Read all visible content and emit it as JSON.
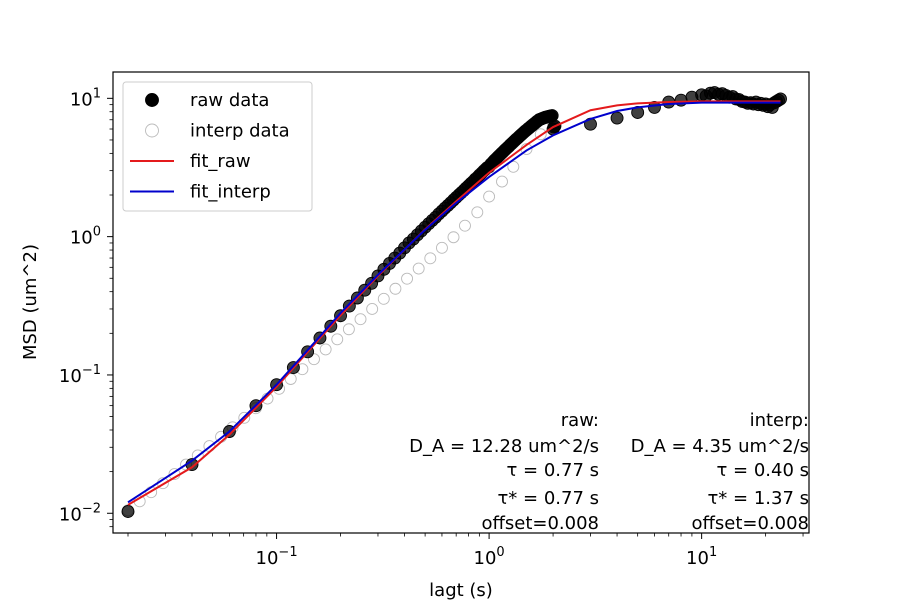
{
  "chart_data": {
    "type": "scatter",
    "xlabel": "lagt (s)",
    "ylabel": "MSD (um^2)",
    "xscale": "log",
    "yscale": "log",
    "xlim": [
      0.017,
      32
    ],
    "ylim": [
      0.0072,
      15.5
    ],
    "grid": false,
    "legend_position": "top-left",
    "x_ticks": [
      {
        "value": 0.1,
        "base": "10",
        "exp": "−1"
      },
      {
        "value": 1,
        "base": "10",
        "exp": "0"
      },
      {
        "value": 10,
        "base": "10",
        "exp": "1"
      }
    ],
    "y_ticks": [
      {
        "value": 0.01,
        "base": "10",
        "exp": "−2"
      },
      {
        "value": 0.1,
        "base": "10",
        "exp": "−1"
      },
      {
        "value": 1,
        "base": "10",
        "exp": "0"
      },
      {
        "value": 10,
        "base": "10",
        "exp": "1"
      }
    ],
    "legend": [
      {
        "label": "raw data",
        "kind": "marker",
        "fill": "#000000",
        "edge": "#000000"
      },
      {
        "label": "interp data",
        "kind": "marker",
        "fill": "#ffffff",
        "edge": "#bbbbbb"
      },
      {
        "label": "fit_raw",
        "kind": "line",
        "color": "#e41a1c"
      },
      {
        "label": "fit_interp",
        "kind": "line",
        "color": "#0000cc"
      }
    ],
    "series": [
      {
        "name": "interp data",
        "kind": "scatter",
        "fill": "#ffffff",
        "edge": "#bbbbbb",
        "x": [
          0.02,
          0.0227,
          0.0257,
          0.0292,
          0.0331,
          0.0375,
          0.0426,
          0.0483,
          0.0548,
          0.0621,
          0.0705,
          0.0799,
          0.0907,
          0.1028,
          0.1166,
          0.1323,
          0.15,
          0.1702,
          0.193,
          0.2189,
          0.2483,
          0.2817,
          0.3195,
          0.3624,
          0.4111,
          0.4663,
          0.5289,
          0.6,
          0.68,
          0.77,
          0.88,
          1.0,
          1.15,
          1.3,
          1.5,
          1.75,
          2.0
        ],
        "y": [
          0.0105,
          0.0122,
          0.0142,
          0.0165,
          0.0192,
          0.0225,
          0.0262,
          0.0306,
          0.0357,
          0.0418,
          0.049,
          0.0575,
          0.0675,
          0.0794,
          0.0935,
          0.11,
          0.13,
          0.153,
          0.181,
          0.214,
          0.253,
          0.3,
          0.355,
          0.42,
          0.497,
          0.588,
          0.697,
          0.83,
          0.99,
          1.2,
          1.5,
          1.95,
          2.5,
          3.2,
          4.3,
          5.5,
          6.5
        ]
      },
      {
        "name": "raw data",
        "kind": "scatter",
        "fill": "#000000",
        "edge": "#000000",
        "x": [
          0.02,
          0.04,
          0.06,
          0.08,
          0.1,
          0.12,
          0.14,
          0.16,
          0.18,
          0.2,
          0.22,
          0.24,
          0.26,
          0.28,
          0.3,
          0.32,
          0.34,
          0.36,
          0.38,
          0.4,
          0.42,
          0.44,
          0.46,
          0.48,
          0.5,
          0.52,
          0.54,
          0.56,
          0.58,
          0.6,
          0.62,
          0.64,
          0.66,
          0.68,
          0.7,
          0.72,
          0.74,
          0.76,
          0.78,
          0.8,
          0.82,
          0.84,
          0.86,
          0.88,
          0.9,
          0.92,
          0.94,
          0.96,
          0.98,
          1.0,
          1.02,
          1.04,
          1.06,
          1.08,
          1.1,
          1.12,
          1.14,
          1.16,
          1.18,
          1.2,
          1.22,
          1.24,
          1.26,
          1.28,
          1.3,
          1.32,
          1.34,
          1.36,
          1.38,
          1.4,
          1.42,
          1.44,
          1.46,
          1.48,
          1.5,
          1.52,
          1.54,
          1.56,
          1.58,
          1.6,
          1.62,
          1.64,
          1.66,
          1.68,
          1.7,
          1.72,
          1.74,
          1.76,
          1.78,
          1.8,
          1.82,
          1.84,
          1.86,
          1.88,
          1.9,
          1.92,
          1.94,
          1.96,
          1.98,
          2.0,
          2.02,
          2.04,
          3.0,
          4.0,
          5.0,
          6.0,
          7.0,
          8.0,
          9.0,
          10.0,
          10.5,
          11.0,
          11.5,
          12.0,
          12.5,
          13.0,
          13.5,
          14.0,
          14.5,
          15.0,
          15.5,
          16.0,
          16.5,
          17.0,
          17.5,
          18.0,
          18.5,
          19.0,
          19.5,
          20.0,
          20.5,
          21.0,
          21.5,
          22.0,
          22.5,
          23.0,
          23.5
        ],
        "y": [
          0.0103,
          0.0225,
          0.039,
          0.06,
          0.085,
          0.113,
          0.147,
          0.185,
          0.225,
          0.268,
          0.315,
          0.36,
          0.41,
          0.46,
          0.52,
          0.58,
          0.64,
          0.7,
          0.76,
          0.83,
          0.9,
          0.96,
          1.03,
          1.1,
          1.17,
          1.24,
          1.31,
          1.38,
          1.46,
          1.53,
          1.61,
          1.68,
          1.76,
          1.84,
          1.92,
          2.0,
          2.08,
          2.16,
          2.25,
          2.33,
          2.42,
          2.5,
          2.6,
          2.68,
          2.78,
          2.87,
          2.97,
          3.06,
          3.16,
          3.2,
          3.35,
          3.45,
          3.56,
          3.66,
          3.77,
          3.87,
          3.98,
          4.08,
          4.19,
          4.3,
          4.4,
          4.5,
          4.62,
          4.72,
          4.83,
          4.94,
          5.05,
          5.15,
          5.26,
          5.37,
          5.47,
          5.58,
          5.69,
          5.8,
          5.9,
          6.0,
          6.1,
          6.2,
          6.3,
          6.4,
          6.5,
          6.6,
          6.7,
          6.8,
          6.9,
          7.0,
          7.05,
          7.1,
          7.15,
          7.2,
          7.25,
          7.3,
          7.3,
          7.35,
          7.4,
          7.4,
          7.45,
          7.45,
          7.5,
          6.0,
          6.2,
          6.3,
          6.5,
          7.2,
          7.9,
          8.6,
          9.4,
          9.7,
          10.2,
          10.6,
          10.4,
          10.9,
          11.0,
          10.7,
          10.8,
          10.5,
          10.2,
          10.3,
          9.9,
          9.8,
          9.5,
          9.4,
          9.2,
          9.3,
          9.1,
          9.4,
          9.0,
          9.2,
          8.9,
          9.1,
          8.7,
          9.0,
          8.6,
          9.3,
          9.5,
          9.7,
          9.9
        ]
      },
      {
        "name": "fit_raw",
        "kind": "line",
        "color": "#e41a1c",
        "x": [
          0.02,
          0.04,
          0.06,
          0.1,
          0.15,
          0.2,
          0.3,
          0.5,
          0.7,
          1.0,
          1.5,
          2.0,
          3.0,
          4.0,
          5.0,
          7.0,
          10.0,
          15.0,
          20.0,
          23.5
        ],
        "y": [
          0.0115,
          0.0215,
          0.037,
          0.082,
          0.165,
          0.27,
          0.52,
          1.13,
          1.8,
          2.9,
          4.6,
          6.2,
          8.2,
          8.9,
          9.2,
          9.4,
          9.5,
          9.5,
          9.5,
          9.5
        ]
      },
      {
        "name": "fit_interp",
        "kind": "line",
        "color": "#0000cc",
        "x": [
          0.02,
          0.04,
          0.06,
          0.1,
          0.15,
          0.2,
          0.3,
          0.5,
          0.7,
          1.0,
          1.5,
          2.0,
          3.0,
          4.0,
          5.0,
          7.0,
          10.0,
          15.0,
          20.0,
          23.5
        ],
        "y": [
          0.012,
          0.024,
          0.039,
          0.085,
          0.17,
          0.28,
          0.53,
          1.12,
          1.75,
          2.7,
          4.2,
          5.4,
          7.1,
          8.1,
          8.6,
          9.1,
          9.3,
          9.3,
          9.3,
          9.3
        ]
      }
    ],
    "annotations": {
      "raw": [
        "raw:",
        "D_A = 12.28 um^2/s",
        "τ = 0.77 s",
        "τ* = 0.77 s",
        "offset=0.008"
      ],
      "interp": [
        "interp:",
        "D_A = 4.35 um^2/s",
        "τ = 0.40 s",
        "τ* = 1.37 s",
        "offset=0.008"
      ]
    }
  }
}
